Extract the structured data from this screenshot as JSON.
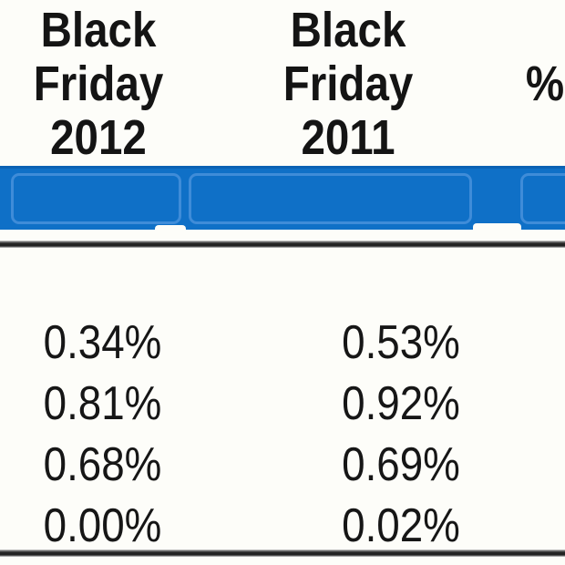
{
  "colors": {
    "highlight_blue": "#0f70c7",
    "highlight_cell_border_blue": "#3f8cd8",
    "rule_dark": "#232323",
    "text": "#161616",
    "background": "#fdfdf9"
  },
  "table": {
    "headers": [
      {
        "label": "Black Friday 2012"
      },
      {
        "label": "Black Friday 2011"
      },
      {
        "label": "%"
      }
    ],
    "highlighted_row_cell_count": 3,
    "rows": [
      [
        "0.34%",
        "0.53%"
      ],
      [
        "0.81%",
        "0.92%"
      ],
      [
        "0.68%",
        "0.69%"
      ],
      [
        "0.00%",
        "0.02%"
      ]
    ]
  }
}
